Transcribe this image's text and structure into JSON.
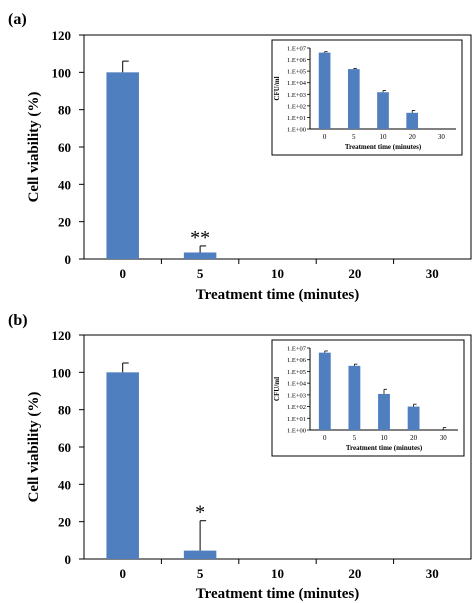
{
  "colors": {
    "bar": "#4f7fbf",
    "axis": "#000000"
  },
  "chart_data": [
    {
      "panel_label": "(a)",
      "type": "bar",
      "categories": [
        "0",
        "5",
        "10",
        "20",
        "30"
      ],
      "values": [
        100,
        3.5,
        0,
        0,
        0
      ],
      "error_plus": [
        6,
        3.5,
        0,
        0,
        0
      ],
      "annotations": [
        {
          "category": "5",
          "text": "**"
        }
      ],
      "xlabel": "Treatment time (minutes)",
      "ylabel": "Cell viability (%)",
      "ylim": [
        0,
        120
      ],
      "yticks": [
        "0",
        "20",
        "40",
        "60",
        "80",
        "100",
        "120"
      ],
      "inset": {
        "type": "bar",
        "log_scale": true,
        "categories": [
          "0",
          "5",
          "10",
          "20",
          "30"
        ],
        "values": [
          4000000,
          150000,
          1500,
          25,
          0
        ],
        "error_plus_factor": [
          1.2,
          1.15,
          1.4,
          1.6,
          0
        ],
        "xlabel": "Treatment time (minutes)",
        "ylabel": "CFU/ml",
        "ylim": [
          1,
          10000000
        ],
        "yticks": [
          "1.E+00",
          "1.E+01",
          "1.E+02",
          "1.E+03",
          "1.E+04",
          "1.E+05",
          "1.E+06",
          "1.E+07"
        ]
      }
    },
    {
      "panel_label": "(b)",
      "type": "bar",
      "categories": [
        "0",
        "5",
        "10",
        "20",
        "30"
      ],
      "values": [
        100,
        4.5,
        0,
        0,
        0
      ],
      "error_plus": [
        5,
        16,
        0,
        0,
        0
      ],
      "annotations": [
        {
          "category": "5",
          "text": "*"
        }
      ],
      "xlabel": "Treatment time (minutes)",
      "ylabel": "Cell viability (%)",
      "ylim": [
        0,
        120
      ],
      "yticks": [
        "0",
        "20",
        "40",
        "60",
        "80",
        "100",
        "120"
      ],
      "inset": {
        "type": "bar",
        "log_scale": true,
        "categories": [
          "0",
          "5",
          "10",
          "20",
          "30"
        ],
        "values": [
          4000000,
          300000,
          1200,
          100,
          0
        ],
        "error_plus_factor": [
          1.4,
          1.4,
          2.5,
          1.6,
          1.6
        ],
        "xlabel": "Treatment time (minutes)",
        "ylabel": "CFU/ml",
        "ylim": [
          1,
          10000000
        ],
        "yticks": [
          "1.E+00",
          "1.E+01",
          "1.E+02",
          "1.E+03",
          "1.E+04",
          "1.E+05",
          "1.E+06",
          "1.E+07"
        ]
      }
    }
  ]
}
